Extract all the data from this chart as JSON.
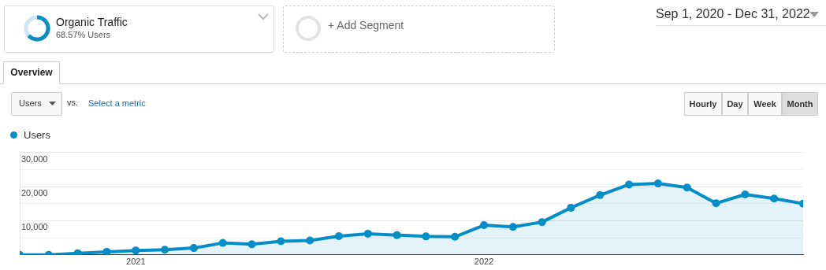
{
  "chart_data": {
    "type": "area",
    "title": "Organic Traffic",
    "subtitle": "68.57% Users",
    "annotations": [
      "+ Add Segment",
      "Sep 1, 2020 - Dec 31, 2022",
      "Overview",
      "Users",
      "vs.",
      "Select a metric",
      "Hourly",
      "Day",
      "Week",
      "Month"
    ],
    "x": [
      "2020-09",
      "2020-10",
      "2020-11",
      "2020-12",
      "2021-01",
      "2021-02",
      "2021-03",
      "2021-04",
      "2021-05",
      "2021-06",
      "2021-07",
      "2021-08",
      "2021-09",
      "2021-10",
      "2021-11",
      "2021-12",
      "2022-01",
      "2022-02",
      "2022-03",
      "2022-04",
      "2022-05",
      "2022-06",
      "2022-07",
      "2022-08",
      "2022-09",
      "2022-10",
      "2022-11",
      "2022-12"
    ],
    "series": [
      {
        "name": "Users",
        "color": "#058dc7",
        "values": [
          0,
          0,
          500,
          900,
          1300,
          1500,
          2000,
          3500,
          3100,
          4000,
          4200,
          5500,
          6200,
          5800,
          5400,
          5300,
          8700,
          8200,
          9600,
          13800,
          17500,
          20600,
          20900,
          19700,
          15100,
          17700,
          16500,
          15000
        ]
      }
    ],
    "xlim": [
      "2020-09",
      "2022-12"
    ],
    "xticks": [
      {
        "value": "2021-01",
        "label": "2021"
      },
      {
        "value": "2022-01",
        "label": "2022"
      }
    ],
    "ylim": [
      0,
      30000
    ],
    "yticks": [
      {
        "value": 0,
        "label": null
      },
      {
        "value": 5000,
        "label": null
      },
      {
        "value": 10000,
        "label": "10,000"
      },
      {
        "value": 15000,
        "label": null
      },
      {
        "value": 20000,
        "label": "20,000"
      },
      {
        "value": 25000,
        "label": null
      },
      {
        "value": 30000,
        "label": "30,000"
      }
    ],
    "grid": "y",
    "legend": "top left",
    "marker": "circle",
    "line_style": "solid"
  }
}
